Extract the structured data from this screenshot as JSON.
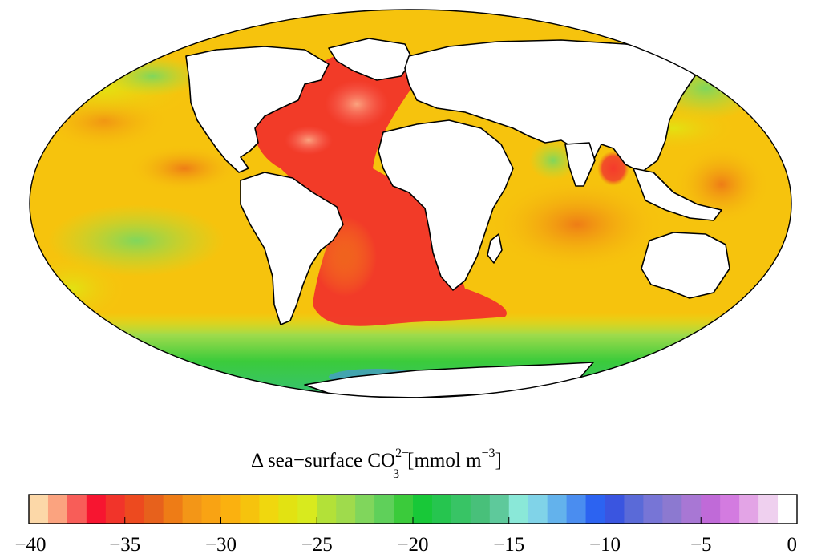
{
  "title": {
    "prefix": "Δ sea−surface CO",
    "superscript": "2−",
    "subscript": "3",
    "units_prefix": "[mmol m",
    "units_superscript": "−3",
    "units_suffix": "]"
  },
  "colorbar": {
    "tick_labels": [
      "−40",
      "−35",
      "−30",
      "−25",
      "−20",
      "−15",
      "−10",
      "−5",
      "0"
    ],
    "min": -40,
    "max": 0,
    "colors": [
      "#fcd8a8",
      "#fba37f",
      "#f85d58",
      "#f71530",
      "#f1342a",
      "#ed4a1f",
      "#e7611c",
      "#ee7c16",
      "#f39617",
      "#f9a313",
      "#fbb10f",
      "#f6c30d",
      "#f0d70e",
      "#e2e212",
      "#d8ea1e",
      "#b3e138",
      "#9fdb4c",
      "#80d65c",
      "#5fd05a",
      "#3bcb3b",
      "#18c838",
      "#26c54f",
      "#38c465",
      "#48c07a",
      "#5ec99b",
      "#8ae8d8",
      "#80d3e8",
      "#63b2ec",
      "#4a8df0",
      "#2c63f1",
      "#3a55e0",
      "#5a6ad8",
      "#7775d6",
      "#8c79d0",
      "#a877d4",
      "#c06ad8",
      "#d37be0",
      "#e3a4e6",
      "#efd0ef",
      "#ffffff"
    ]
  },
  "map": {
    "projection": "Mollweide",
    "features": [
      "ocean-field",
      "land",
      "coastline"
    ]
  }
}
